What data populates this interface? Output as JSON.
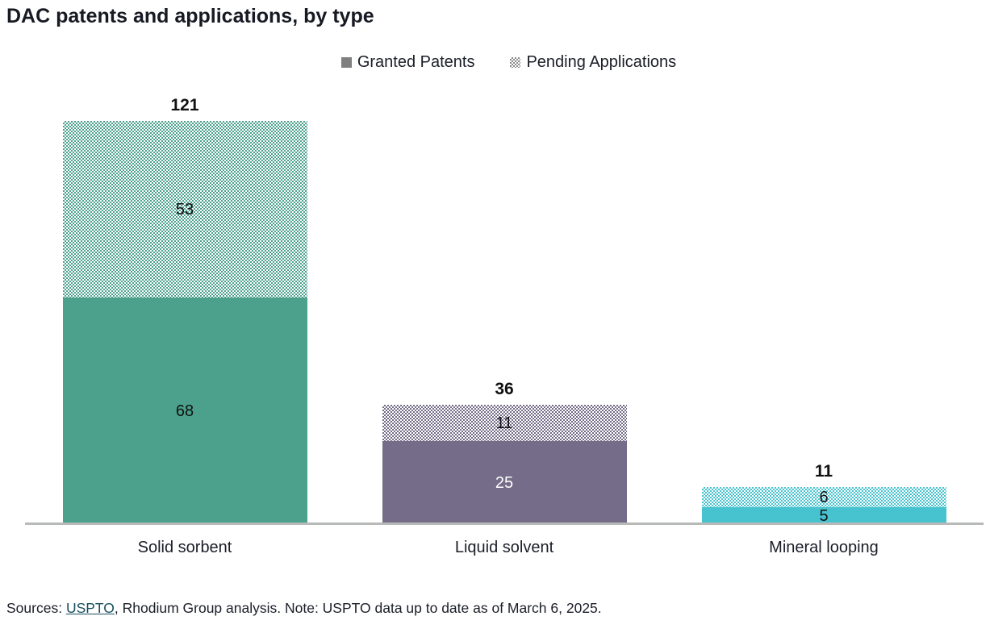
{
  "title": "DAC patents and applications, by type",
  "legend": {
    "items": [
      {
        "label": "Granted Patents",
        "swatch": "solid-gray-square",
        "color": "#7f7f7f"
      },
      {
        "label": "Pending Applications",
        "swatch": "checkered-gray-square",
        "color": "#8a8a8a"
      }
    ]
  },
  "chart_data": {
    "type": "bar",
    "subtype": "stacked",
    "title": "DAC patents and applications, by type",
    "categories": [
      "Solid sorbent",
      "Liquid solvent",
      "Mineral looping"
    ],
    "series": [
      {
        "name": "Granted Patents",
        "style": "solid",
        "values": [
          68,
          25,
          5
        ]
      },
      {
        "name": "Pending Applications",
        "style": "checkerboard",
        "values": [
          53,
          11,
          6
        ]
      }
    ],
    "totals": [
      121,
      36,
      11
    ],
    "bar_colors": [
      "#4ba18c",
      "#746c88",
      "#46c3ce"
    ],
    "granted_label_colors": [
      "#111111",
      "#ffffff",
      "#111111"
    ],
    "pending_label_color": "#111111",
    "xlabel": "",
    "ylabel": "",
    "ylim": [
      0,
      130
    ],
    "grid": false,
    "legend_position": "top-center",
    "baseline_color": "#b7bab9"
  },
  "source": {
    "prefix": "Sources: ",
    "link_text": "USPTO",
    "suffix": ", Rhodium Group analysis. Note: USPTO data up to date as of March 6, 2025.",
    "link_color": "#174e5e"
  }
}
